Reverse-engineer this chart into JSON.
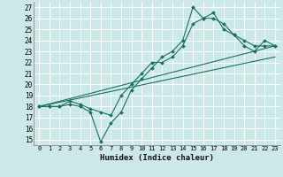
{
  "title": "",
  "xlabel": "Humidex (Indice chaleur)",
  "background_color": "#cce8e8",
  "grid_color": "#ffffff",
  "line_color": "#1a7060",
  "x_ticks": [
    0,
    1,
    2,
    3,
    4,
    5,
    6,
    7,
    8,
    9,
    10,
    11,
    12,
    13,
    14,
    15,
    16,
    17,
    18,
    19,
    20,
    21,
    22,
    23
  ],
  "ylim": [
    14.5,
    27.5
  ],
  "xlim": [
    -0.5,
    23.5
  ],
  "yticks": [
    15,
    16,
    17,
    18,
    19,
    20,
    21,
    22,
    23,
    24,
    25,
    26,
    27
  ],
  "line1_x": [
    0,
    1,
    2,
    3,
    4,
    5,
    6,
    7,
    8,
    9,
    10,
    11,
    12,
    13,
    14,
    15,
    16,
    17,
    18,
    19,
    20,
    21,
    22,
    23
  ],
  "line1_y": [
    18.0,
    18.0,
    18.0,
    18.2,
    18.0,
    17.5,
    14.8,
    16.5,
    17.5,
    19.5,
    20.5,
    21.5,
    22.5,
    23.0,
    24.0,
    27.0,
    26.0,
    26.0,
    25.5,
    24.5,
    23.5,
    23.0,
    24.0,
    23.5
  ],
  "line2_x": [
    0,
    1,
    2,
    3,
    4,
    5,
    6,
    7,
    8,
    9,
    10,
    11,
    12,
    13,
    14,
    15,
    16,
    17,
    18,
    19,
    20,
    21,
    22,
    23
  ],
  "line2_y": [
    18.0,
    18.0,
    18.0,
    18.5,
    18.2,
    17.8,
    17.5,
    17.2,
    19.0,
    20.0,
    21.0,
    22.0,
    22.0,
    22.5,
    23.5,
    25.5,
    26.0,
    26.5,
    25.0,
    24.5,
    24.0,
    23.5,
    23.5,
    23.5
  ],
  "line3_x": [
    0,
    23
  ],
  "line3_y": [
    18.0,
    23.5
  ],
  "line4_x": [
    0,
    23
  ],
  "line4_y": [
    18.0,
    22.5
  ]
}
